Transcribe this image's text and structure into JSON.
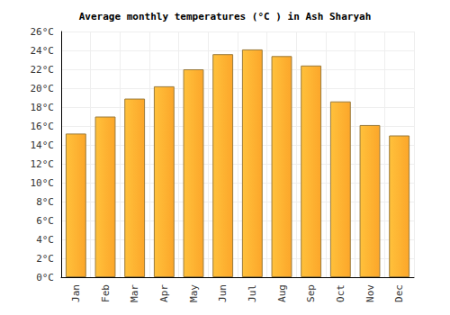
{
  "chart_data": {
    "type": "bar",
    "title": "Average monthly temperatures (°C ) in Ash Sharyah",
    "categories": [
      "Jan",
      "Feb",
      "Mar",
      "Apr",
      "May",
      "Jun",
      "Jul",
      "Aug",
      "Sep",
      "Oct",
      "Nov",
      "Dec"
    ],
    "values": [
      15.2,
      17.0,
      18.9,
      20.2,
      22.0,
      23.6,
      24.1,
      23.4,
      22.4,
      18.6,
      16.1,
      15.0
    ],
    "color": "#fca62a",
    "ylim": [
      0,
      26
    ],
    "yticks": [
      {
        "value": 0,
        "label": "0°C"
      },
      {
        "value": 2,
        "label": "2°C"
      },
      {
        "value": 4,
        "label": "4°C"
      },
      {
        "value": 6,
        "label": "6°C"
      },
      {
        "value": 8,
        "label": "8°C"
      },
      {
        "value": 10,
        "label": "10°C"
      },
      {
        "value": 12,
        "label": "12°C"
      },
      {
        "value": 14,
        "label": "14°C"
      },
      {
        "value": 16,
        "label": "16°C"
      },
      {
        "value": 18,
        "label": "18°C"
      },
      {
        "value": 20,
        "label": "20°C"
      },
      {
        "value": 22,
        "label": "22°C"
      },
      {
        "value": 24,
        "label": "24°C"
      },
      {
        "value": 26,
        "label": "26°C"
      }
    ],
    "grid": true
  }
}
